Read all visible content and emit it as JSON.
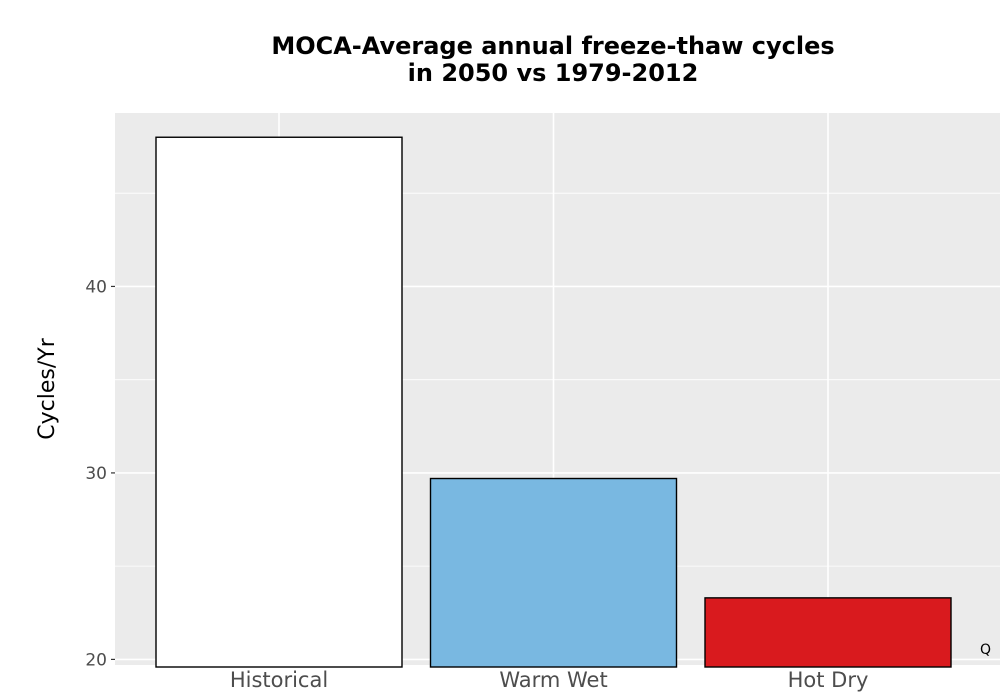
{
  "chart_data": {
    "type": "bar",
    "title_line1": "MOCA-Average annual freeze-thaw cycles",
    "title_line2": "in 2050 vs 1979-2012",
    "ylabel": "Cycles/Yr",
    "xlabel": "",
    "categories": [
      "Historical",
      "Warm Wet",
      "Hot Dry"
    ],
    "values": [
      48.0,
      29.7,
      23.3
    ],
    "colors": [
      "#ffffff",
      "#79b8e1",
      "#d91a1e"
    ],
    "ylim": [
      19.7,
      49.3
    ],
    "yticks": [
      20,
      30,
      40
    ],
    "ytick_labels": [
      "20",
      "30",
      "40"
    ],
    "grid": true,
    "panel_background": "#ebebeb",
    "corner_mark": "Q"
  }
}
